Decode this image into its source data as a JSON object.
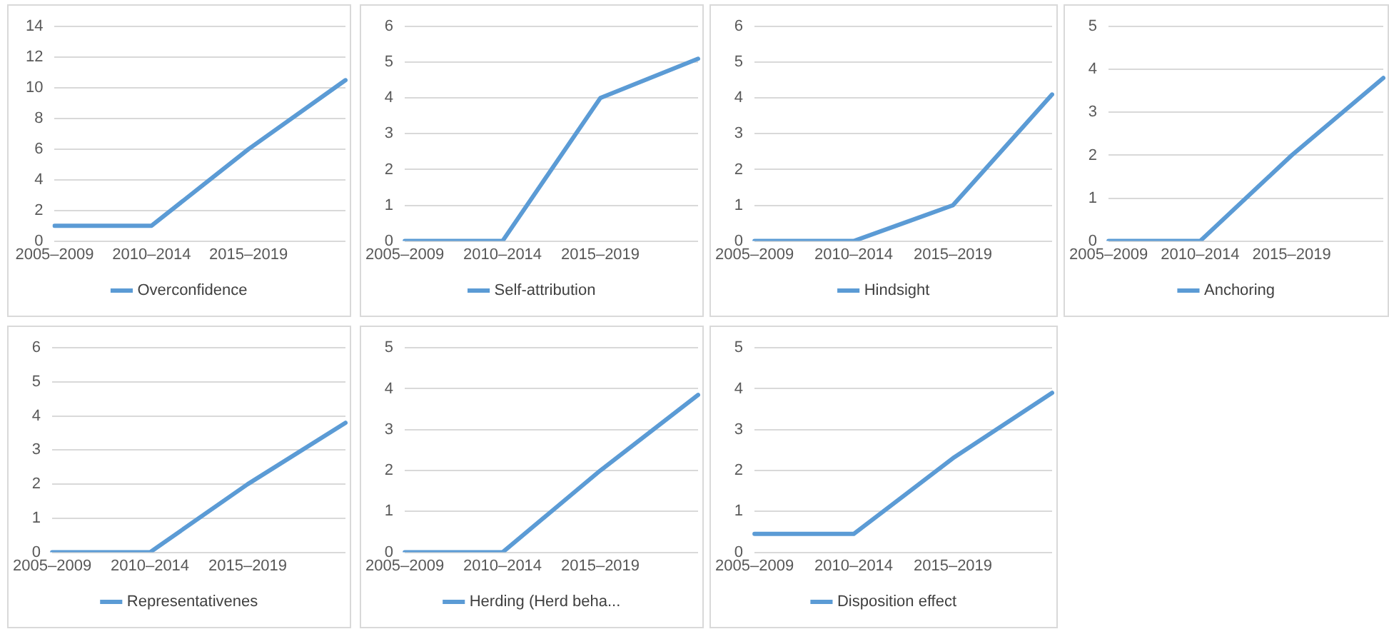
{
  "chart_data": [
    {
      "type": "line",
      "categories": [
        "2005–2009",
        "2010–2014",
        "2015–2019",
        null
      ],
      "series": [
        {
          "name": "Overconfidence",
          "color": "#5b9bd5",
          "values": [
            1,
            1,
            6,
            10.5
          ]
        }
      ],
      "ylim": [
        0,
        14
      ],
      "yticks": [
        0,
        2,
        4,
        6,
        8,
        10,
        12,
        14
      ],
      "grid": "y",
      "legend": "bottom"
    },
    {
      "type": "line",
      "categories": [
        "2005–2009",
        "2010–2014",
        "2015–2019",
        null
      ],
      "series": [
        {
          "name": "Self-attribution",
          "color": "#5b9bd5",
          "values": [
            0,
            0,
            4,
            5.1
          ]
        }
      ],
      "ylim": [
        0,
        6
      ],
      "yticks": [
        0,
        1,
        2,
        3,
        4,
        5,
        6
      ],
      "grid": "y",
      "legend": "bottom"
    },
    {
      "type": "line",
      "categories": [
        "2005–2009",
        "2010–2014",
        "2015–2019",
        null
      ],
      "series": [
        {
          "name": "Hindsight",
          "color": "#5b9bd5",
          "values": [
            0,
            0,
            1,
            4.1
          ]
        }
      ],
      "ylim": [
        0,
        6
      ],
      "yticks": [
        0,
        1,
        2,
        3,
        4,
        5,
        6
      ],
      "grid": "y",
      "legend": "bottom"
    },
    {
      "type": "line",
      "categories": [
        "2005–2009",
        "2010–2014",
        "2015–2019",
        null
      ],
      "series": [
        {
          "name": "Anchoring",
          "color": "#5b9bd5",
          "values": [
            0,
            0,
            2,
            3.8
          ]
        }
      ],
      "ylim": [
        0,
        5
      ],
      "yticks": [
        0,
        1,
        2,
        3,
        4,
        5
      ],
      "grid": "y",
      "legend": "bottom"
    },
    {
      "type": "line",
      "categories": [
        "2005–2009",
        "2010–2014",
        "2015–2019",
        null
      ],
      "series": [
        {
          "name": "Representativenes",
          "color": "#5b9bd5",
          "values": [
            0,
            0,
            2,
            3.8
          ]
        }
      ],
      "ylim": [
        0,
        6
      ],
      "yticks": [
        0,
        1,
        2,
        3,
        4,
        5,
        6
      ],
      "grid": "y",
      "legend": "bottom"
    },
    {
      "type": "line",
      "categories": [
        "2005–2009",
        "2010–2014",
        "2015–2019",
        null
      ],
      "series": [
        {
          "name": "Herding (Herd beha...",
          "color": "#5b9bd5",
          "values": [
            0,
            0,
            2,
            3.85
          ]
        }
      ],
      "ylim": [
        0,
        5
      ],
      "yticks": [
        0,
        1,
        2,
        3,
        4,
        5
      ],
      "grid": "y",
      "legend": "bottom"
    },
    {
      "type": "line",
      "categories": [
        "2005–2009",
        "2010–2014",
        "2015–2019",
        null
      ],
      "series": [
        {
          "name": "Disposition effect",
          "color": "#5b9bd5",
          "values": [
            0.45,
            0.45,
            2.3,
            3.9
          ]
        }
      ],
      "ylim": [
        0,
        5
      ],
      "yticks": [
        0,
        1,
        2,
        3,
        4,
        5
      ],
      "grid": "y",
      "legend": "bottom"
    }
  ]
}
